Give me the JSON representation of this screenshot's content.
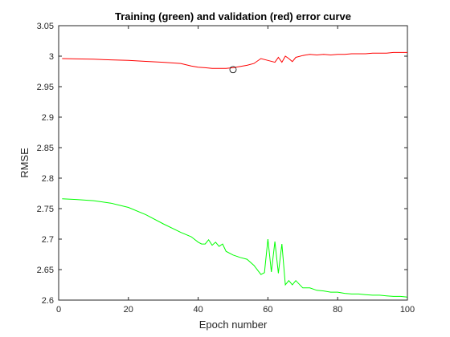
{
  "chart_data": {
    "type": "line",
    "title": "Training (green) and validation (red) error curve",
    "xlabel": "Epoch number",
    "ylabel": "RMSE",
    "xlim": [
      0,
      100
    ],
    "ylim": [
      2.6,
      3.05
    ],
    "xticks": [
      0,
      20,
      40,
      60,
      80,
      100
    ],
    "yticks": [
      2.6,
      2.65,
      2.7,
      2.75,
      2.8,
      2.85,
      2.9,
      2.95,
      3,
      3.05
    ],
    "ytick_labels": [
      "2.6",
      "2.65",
      "2.7",
      "2.75",
      "2.8",
      "2.85",
      "2.9",
      "2.95",
      "3",
      "3.05"
    ],
    "grid": false,
    "series": [
      {
        "color": "#ff0000",
        "x": [
          1,
          5,
          10,
          15,
          20,
          25,
          30,
          35,
          38,
          40,
          42,
          44,
          46,
          48,
          50,
          52,
          54,
          56,
          58,
          60,
          62,
          63,
          64,
          65,
          66,
          67,
          68,
          70,
          72,
          74,
          76,
          78,
          80,
          82,
          84,
          86,
          88,
          90,
          92,
          94,
          96,
          98,
          100
        ],
        "y": [
          2.996,
          2.9955,
          2.995,
          2.994,
          2.993,
          2.9915,
          2.99,
          2.988,
          2.984,
          2.982,
          2.981,
          2.98,
          2.98,
          2.98,
          2.981,
          2.983,
          2.985,
          2.988,
          2.996,
          2.993,
          2.99,
          2.998,
          2.99,
          3.0,
          2.996,
          2.991,
          2.998,
          3.001,
          3.003,
          3.002,
          3.003,
          3.002,
          3.003,
          3.003,
          3.004,
          3.004,
          3.004,
          3.005,
          3.005,
          3.005,
          3.006,
          3.006,
          3.006
        ]
      },
      {
        "color": "#00ff00",
        "x": [
          1,
          5,
          10,
          15,
          20,
          25,
          30,
          35,
          38,
          40,
          41,
          42,
          43,
          44,
          45,
          46,
          47,
          48,
          50,
          52,
          54,
          56,
          58,
          59,
          60,
          61,
          62,
          63,
          64,
          65,
          66,
          67,
          68,
          70,
          72,
          74,
          76,
          78,
          80,
          82,
          84,
          86,
          88,
          90,
          92,
          94,
          96,
          98,
          100
        ],
        "y": [
          2.766,
          2.765,
          2.763,
          2.759,
          2.752,
          2.74,
          2.725,
          2.711,
          2.704,
          2.695,
          2.692,
          2.692,
          2.699,
          2.69,
          2.695,
          2.688,
          2.692,
          2.68,
          2.674,
          2.67,
          2.667,
          2.657,
          2.642,
          2.645,
          2.7,
          2.646,
          2.696,
          2.644,
          2.692,
          2.625,
          2.632,
          2.625,
          2.632,
          2.62,
          2.62,
          2.616,
          2.615,
          2.613,
          2.613,
          2.611,
          2.61,
          2.61,
          2.609,
          2.608,
          2.608,
          2.607,
          2.606,
          2.606,
          2.605
        ]
      }
    ],
    "marker": {
      "x": 50,
      "y": 2.978,
      "shape": "circle"
    }
  }
}
